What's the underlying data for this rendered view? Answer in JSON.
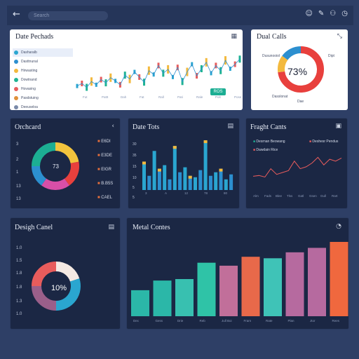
{
  "topbar": {
    "back_icon": "arrow-left-icon",
    "search_placeholder": "Search",
    "icons": [
      "smile-icon",
      "link-icon",
      "user-icon",
      "clock-icon"
    ]
  },
  "cards": {
    "date_perchads": {
      "title": "Date Pechads",
      "icon": "calendar-icon",
      "sidebar": [
        "Dasharalb",
        "Dasttnunal",
        "Hirwasting",
        "Dowtnand",
        "Hovasing",
        "Pasdstuing",
        "Deeuseloa"
      ],
      "x_labels": [
        "Fut",
        "Pattt",
        "Dah",
        "Fat",
        "Rall",
        "Pati",
        "Rale",
        "Polt",
        "Pose"
      ],
      "badge": "ROS"
    },
    "dual_calls": {
      "title": "Dual Calls",
      "icon": "expand-icon",
      "center": "73%",
      "labels": [
        "Dusunooiol",
        "Dipt",
        "Dasslonat",
        "Dae"
      ]
    },
    "orchcard": {
      "title": "Orchcard",
      "icon": "chevron-left-icon",
      "center": "73",
      "ticks": [
        "3",
        "2",
        "1",
        "13",
        "13"
      ],
      "legend": [
        "E6DI",
        "E3DE",
        "EIGR",
        "B.B5S",
        "CAEL"
      ]
    },
    "date_tots": {
      "title": "Date Tots",
      "icon": "list-icon",
      "ticks": [
        "30",
        "35",
        "15",
        "10",
        "5",
        "5"
      ],
      "x": [
        "3",
        "A",
        "12",
        "78",
        "80"
      ]
    },
    "fright_cants": {
      "title": "Fraght Cants",
      "icon": "list-icon",
      "legend": [
        "Desrnan Beowang",
        "Deshesr Pendus",
        "Dawdain Rice"
      ],
      "x": [
        "Alm",
        "Fads",
        "Blee",
        "Tlss",
        "Gatl",
        "Gsen",
        "Gull",
        "Rart"
      ]
    },
    "design_card": {
      "title": "Desigh Canel",
      "icon": "list-icon",
      "center": "10%",
      "ticks": [
        "1.0",
        "1.5",
        "1.8",
        "1.8",
        "1.3",
        "1.0"
      ]
    },
    "metal_contes": {
      "title": "Metal Contes",
      "icon": "refresh-icon",
      "x": [
        "Dec",
        "Gess",
        "Drie",
        "Reb",
        "Jull Boi",
        "Frarn",
        "Rate",
        "Plan",
        "Jtor",
        "Rees"
      ]
    }
  },
  "chart_data": [
    {
      "type": "line",
      "title": "Date Pechads",
      "series": [
        {
          "values": [
            62,
            58,
            64,
            55,
            60,
            52,
            57,
            49,
            54,
            60,
            45,
            51,
            40,
            48,
            56,
            38,
            44,
            30,
            42,
            36,
            48,
            33,
            55,
            40,
            28,
            46,
            35,
            25,
            42,
            30,
            38,
            22,
            35,
            28,
            20
          ]
        }
      ]
    },
    {
      "type": "pie",
      "title": "Dual Calls",
      "values": [
        73,
        12,
        15
      ]
    },
    {
      "type": "pie",
      "title": "Orchcard",
      "values": [
        22,
        18,
        20,
        15,
        25
      ]
    },
    {
      "type": "bar",
      "title": "Date Tots",
      "values": [
        40,
        20,
        55,
        30,
        35,
        15,
        62,
        25,
        32,
        20,
        18,
        28,
        70,
        20,
        25,
        30,
        15,
        22
      ]
    },
    {
      "type": "line",
      "title": "Fraght Cants",
      "series": [
        {
          "values": [
            40,
            42,
            38,
            60,
            45,
            50,
            55,
            80,
            60,
            65,
            75,
            90,
            70,
            85,
            80,
            88
          ]
        }
      ]
    },
    {
      "type": "pie",
      "title": "Desigh Canel",
      "values": [
        20,
        30,
        25,
        25
      ]
    },
    {
      "type": "bar",
      "title": "Metal Contes",
      "values": [
        35,
        48,
        50,
        72,
        68,
        80,
        78,
        86,
        92,
        100
      ]
    }
  ]
}
